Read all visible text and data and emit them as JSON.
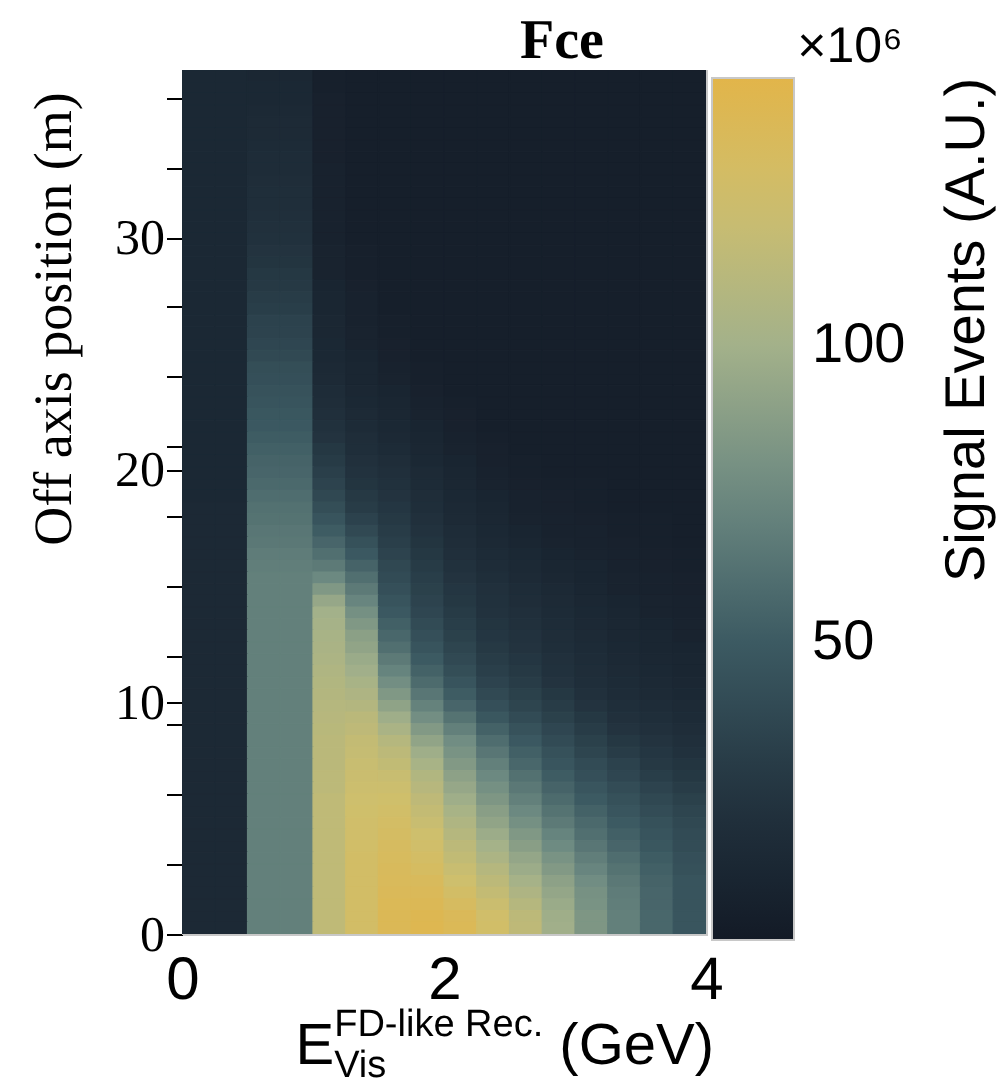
{
  "chart_data": {
    "type": "heatmap",
    "title": "Fce",
    "xlabel": "E$^{FD-like Rec.}$$_{Vis}$ (GeV)",
    "ylabel": "Off axis position (m)",
    "clabel": "Signal Events (A.U.)",
    "annotations": [
      "×10⁶"
    ],
    "xlim": [
      0,
      4.0
    ],
    "xticks": [
      0,
      2,
      4
    ],
    "ylim": [
      0,
      37.2
    ],
    "yticks": [
      0,
      {
        "value": 3,
        "label": null
      },
      {
        "value": 6,
        "label": null
      },
      {
        "value": 9,
        "label": null
      },
      10,
      {
        "value": 12,
        "label": null
      },
      {
        "value": 15,
        "label": null
      },
      {
        "value": 18,
        "label": null
      },
      20,
      {
        "value": 21,
        "label": null
      },
      {
        "value": 24,
        "label": null
      },
      {
        "value": 27,
        "label": null
      },
      30,
      {
        "value": 33,
        "label": null
      },
      {
        "value": 36,
        "label": null
      }
    ],
    "clim": [
      0,
      145
    ],
    "cticks": [
      50,
      100
    ],
    "cells": [
      [
        13,
        13,
        12,
        12,
        6,
        5,
        5,
        5,
        5,
        5,
        5,
        5,
        5,
        5,
        5,
        5
      ],
      [
        13,
        13,
        13,
        13,
        6,
        5,
        5,
        5,
        5,
        5,
        5,
        5,
        5,
        5,
        5,
        5
      ],
      [
        13,
        13,
        13,
        13,
        7,
        5,
        5,
        5,
        5,
        5,
        5,
        5,
        5,
        5,
        5,
        5
      ],
      [
        13,
        13,
        14,
        14,
        7,
        5,
        5,
        5,
        5,
        5,
        5,
        5,
        5,
        5,
        5,
        5
      ],
      [
        13,
        13,
        15,
        15,
        7,
        5,
        5,
        5,
        5,
        5,
        5,
        5,
        5,
        5,
        5,
        5
      ],
      [
        13,
        13,
        15,
        15,
        7,
        5,
        5,
        5,
        5,
        5,
        5,
        5,
        5,
        5,
        5,
        5
      ],
      [
        13,
        13,
        16,
        16,
        7,
        5,
        5,
        5,
        5,
        5,
        5,
        5,
        5,
        5,
        5,
        5
      ],
      [
        13,
        13,
        17,
        17,
        7,
        5,
        5,
        5,
        5,
        5,
        5,
        5,
        5,
        5,
        5,
        5
      ],
      [
        13,
        13,
        17,
        17,
        8,
        5,
        5,
        5,
        5,
        5,
        5,
        5,
        5,
        5,
        5,
        5
      ],
      [
        13,
        13,
        18,
        18,
        8,
        5,
        5,
        5,
        5,
        5,
        5,
        5,
        5,
        5,
        5,
        5
      ],
      [
        13,
        13,
        19,
        19,
        8,
        5,
        5,
        5,
        5,
        5,
        5,
        5,
        5,
        5,
        5,
        5
      ],
      [
        13,
        13,
        19,
        19,
        8,
        5,
        5,
        5,
        5,
        5,
        5,
        5,
        5,
        5,
        5,
        5
      ],
      [
        13,
        13,
        20,
        20,
        8,
        5,
        5,
        5,
        5,
        5,
        5,
        5,
        5,
        5,
        5,
        5
      ],
      [
        13,
        13,
        21,
        21,
        8,
        5,
        5,
        5,
        5,
        5,
        5,
        5,
        5,
        5,
        5,
        5
      ],
      [
        13,
        13,
        22,
        22,
        8,
        5,
        5,
        5,
        5,
        5,
        5,
        5,
        5,
        5,
        5,
        5
      ],
      [
        13,
        13,
        24,
        24,
        9,
        6,
        5,
        5,
        5,
        5,
        5,
        5,
        5,
        5,
        5,
        5
      ],
      [
        13,
        13,
        25,
        25,
        9,
        6,
        5,
        5,
        5,
        5,
        5,
        5,
        5,
        5,
        5,
        5
      ],
      [
        13,
        13,
        27,
        27,
        9,
        6,
        5,
        5,
        5,
        5,
        5,
        5,
        5,
        5,
        5,
        5
      ],
      [
        13,
        13,
        28,
        28,
        10,
        7,
        5,
        5,
        5,
        5,
        5,
        5,
        5,
        5,
        5,
        5
      ],
      [
        13,
        13,
        30,
        30,
        11,
        8,
        5,
        5,
        5,
        5,
        5,
        5,
        5,
        5,
        5,
        5
      ],
      [
        13,
        13,
        31,
        31,
        11,
        8,
        5,
        5,
        5,
        5,
        5,
        5,
        5,
        5,
        5,
        5
      ],
      [
        13,
        13,
        34,
        34,
        12,
        8,
        6,
        5,
        5,
        5,
        5,
        5,
        5,
        5,
        5,
        5
      ],
      [
        13,
        13,
        35,
        35,
        12,
        9,
        6,
        5,
        5,
        5,
        5,
        5,
        5,
        5,
        5,
        5
      ],
      [
        13,
        13,
        37,
        37,
        13,
        9,
        7,
        5,
        5,
        5,
        5,
        5,
        5,
        5,
        5,
        5
      ],
      [
        13,
        13,
        39,
        39,
        13,
        10,
        7,
        5,
        5,
        5,
        5,
        5,
        5,
        5,
        5,
        5
      ],
      [
        13,
        13,
        42,
        42,
        14,
        11,
        8,
        6,
        5,
        5,
        5,
        5,
        5,
        5,
        5,
        5
      ],
      [
        13,
        13,
        43,
        43,
        15,
        11,
        9,
        6,
        5,
        5,
        5,
        5,
        5,
        5,
        5,
        5
      ],
      [
        13,
        13,
        45,
        45,
        17,
        12,
        10,
        7,
        5,
        5,
        5,
        5,
        5,
        5,
        5,
        5
      ],
      [
        13,
        13,
        46,
        46,
        18,
        13,
        11,
        8,
        6,
        5,
        5,
        5,
        5,
        5,
        5,
        5
      ],
      [
        13,
        13,
        48,
        48,
        20,
        15,
        12,
        9,
        7,
        5,
        5,
        5,
        5,
        5,
        5,
        5
      ],
      [
        13,
        13,
        49,
        49,
        22,
        16,
        13,
        10,
        7,
        5,
        5,
        5,
        5,
        5,
        5,
        5
      ],
      [
        13,
        13,
        51,
        51,
        24,
        18,
        14,
        11,
        8,
        6,
        5,
        5,
        5,
        5,
        5,
        5
      ],
      [
        13,
        13,
        53,
        53,
        27,
        19,
        16,
        12,
        9,
        7,
        5,
        5,
        5,
        5,
        5,
        5
      ],
      [
        13,
        13,
        55,
        55,
        29,
        21,
        18,
        13,
        10,
        7,
        6,
        5,
        5,
        5,
        5,
        5
      ],
      [
        13,
        13,
        56,
        56,
        32,
        23,
        20,
        15,
        11,
        8,
        6,
        5,
        5,
        5,
        5,
        5
      ],
      [
        13,
        13,
        58,
        58,
        35,
        25,
        22,
        16,
        12,
        9,
        7,
        6,
        6,
        5,
        5,
        5
      ],
      [
        13,
        13,
        60,
        60,
        38,
        28,
        24,
        18,
        13,
        10,
        8,
        7,
        6,
        5,
        5,
        5
      ],
      [
        14,
        14,
        62,
        62,
        42,
        30,
        26,
        19,
        14,
        11,
        8,
        7,
        6,
        5,
        5,
        5
      ],
      [
        14,
        14,
        63,
        63,
        46,
        34,
        28,
        21,
        15,
        12,
        9,
        8,
        7,
        6,
        6,
        5
      ],
      [
        14,
        14,
        65,
        65,
        51,
        39,
        30,
        23,
        17,
        13,
        10,
        8,
        8,
        6,
        6,
        5
      ],
      [
        14,
        14,
        66,
        66,
        56,
        44,
        32,
        25,
        18,
        14,
        11,
        9,
        8,
        7,
        6,
        5
      ],
      [
        14,
        14,
        68,
        68,
        61,
        49,
        35,
        27,
        20,
        16,
        13,
        10,
        9,
        8,
        7,
        6
      ],
      [
        14,
        14,
        69,
        69,
        67,
        55,
        38,
        29,
        22,
        17,
        14,
        11,
        10,
        8,
        7,
        6
      ],
      [
        14,
        14,
        70,
        70,
        75,
        61,
        40,
        31,
        24,
        19,
        15,
        12,
        10,
        9,
        8,
        7
      ],
      [
        14,
        14,
        70,
        70,
        84,
        67,
        43,
        33,
        26,
        21,
        17,
        14,
        11,
        9,
        8,
        7
      ],
      [
        14,
        14,
        70,
        70,
        94,
        73,
        46,
        35,
        27,
        22,
        18,
        15,
        12,
        10,
        9,
        8
      ],
      [
        14,
        14,
        70,
        70,
        100,
        79,
        49,
        37,
        29,
        23,
        20,
        16,
        13,
        11,
        9,
        8
      ],
      [
        14,
        14,
        70,
        70,
        102,
        84,
        53,
        40,
        31,
        25,
        21,
        17,
        14,
        12,
        10,
        9
      ],
      [
        14,
        14,
        70,
        70,
        103,
        89,
        57,
        43,
        33,
        26,
        23,
        18,
        15,
        12,
        11,
        9
      ],
      [
        14,
        14,
        70,
        70,
        104,
        92,
        61,
        46,
        36,
        28,
        24,
        19,
        16,
        13,
        11,
        10
      ],
      [
        14,
        14,
        70,
        70,
        105,
        96,
        67,
        50,
        39,
        30,
        26,
        21,
        17,
        14,
        12,
        11
      ],
      [
        14,
        14,
        70,
        70,
        107,
        99,
        72,
        54,
        42,
        32,
        28,
        22,
        18,
        15,
        13,
        11
      ],
      [
        14,
        14,
        70,
        70,
        108,
        103,
        78,
        59,
        46,
        35,
        30,
        24,
        19,
        16,
        14,
        12
      ],
      [
        14,
        14,
        70,
        70,
        109,
        106,
        84,
        65,
        51,
        39,
        33,
        27,
        21,
        17,
        15,
        13
      ],
      [
        14,
        14,
        70,
        70,
        110,
        109,
        91,
        71,
        56,
        43,
        36,
        30,
        24,
        19,
        17,
        15
      ],
      [
        14,
        14,
        70,
        70,
        111,
        113,
        98,
        78,
        63,
        48,
        40,
        33,
        27,
        21,
        19,
        16
      ],
      [
        14,
        14,
        70,
        70,
        112,
        115,
        104,
        85,
        70,
        54,
        45,
        37,
        30,
        24,
        21,
        18
      ],
      [
        14,
        14,
        70,
        70,
        113,
        118,
        110,
        92,
        77,
        60,
        49,
        40,
        33,
        27,
        24,
        20
      ],
      [
        14,
        14,
        70,
        70,
        113,
        119,
        114,
        98,
        81,
        65,
        53,
        44,
        36,
        30,
        26,
        22
      ],
      [
        14,
        14,
        70,
        70,
        113,
        121,
        117,
        103,
        85,
        70,
        57,
        47,
        40,
        34,
        28,
        25
      ],
      [
        14,
        14,
        70,
        70,
        114,
        122,
        121,
        108,
        90,
        75,
        62,
        51,
        43,
        37,
        31,
        27
      ],
      [
        14,
        14,
        70,
        70,
        114,
        123,
        123,
        111,
        94,
        79,
        66,
        55,
        47,
        41,
        35,
        30
      ],
      [
        14,
        14,
        70,
        70,
        116,
        124,
        125,
        115,
        98,
        83,
        70,
        59,
        50,
        44,
        38,
        33
      ],
      [
        14,
        14,
        70,
        70,
        116,
        125,
        127,
        118,
        103,
        88,
        75,
        63,
        54,
        47,
        41,
        36
      ],
      [
        14,
        14,
        70,
        70,
        116,
        126,
        129,
        121,
        107,
        92,
        79,
        67,
        58,
        50,
        44,
        38
      ],
      [
        14,
        14,
        70,
        70,
        116,
        126,
        130,
        124,
        110,
        97,
        84,
        72,
        61,
        53,
        46,
        40
      ],
      [
        14,
        14,
        70,
        70,
        116,
        127,
        132,
        126,
        114,
        101,
        88,
        76,
        65,
        56,
        48,
        41
      ],
      [
        14,
        14,
        70,
        70,
        116,
        128,
        133,
        129,
        117,
        105,
        93,
        81,
        69,
        60,
        51,
        43
      ],
      [
        14,
        14,
        70,
        70,
        116,
        128,
        134,
        131,
        121,
        110,
        97,
        85,
        73,
        63,
        53,
        44
      ],
      [
        14,
        14,
        70,
        70,
        116,
        128,
        135,
        134,
        124,
        114,
        102,
        90,
        77,
        66,
        55,
        46
      ],
      [
        14,
        14,
        70,
        70,
        116,
        128,
        136,
        136,
        128,
        118,
        106,
        93,
        80,
        68,
        56,
        46
      ],
      [
        14,
        14,
        70,
        70,
        116,
        128,
        137,
        138,
        132,
        122,
        110,
        96,
        81,
        69,
        56,
        46
      ],
      [
        14,
        14,
        70,
        70,
        116,
        128,
        138,
        140,
        136,
        126,
        114,
        98,
        83,
        70,
        57,
        47
      ],
      [
        14,
        14,
        70,
        70,
        116,
        128,
        138,
        141,
        137,
        127,
        115,
        99,
        83,
        70,
        57,
        47
      ]
    ]
  }
}
